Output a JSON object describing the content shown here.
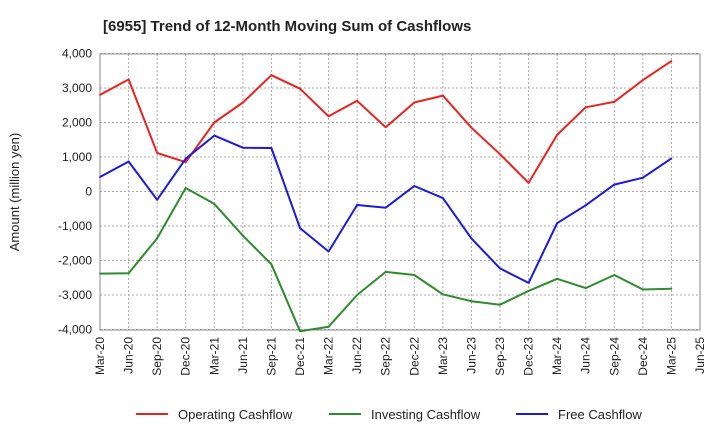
{
  "chart_data": {
    "type": "line",
    "title": "[6955]  Trend of 12-Month Moving Sum of Cashflows",
    "xlabel": "",
    "ylabel": "Amount (million yen)",
    "ylim": [
      -4000,
      4000
    ],
    "yticks": [
      -4000,
      -3000,
      -2000,
      -1000,
      0,
      1000,
      2000,
      3000,
      4000
    ],
    "ytick_labels": [
      "-4,000",
      "-3,000",
      "-2,000",
      "-1,000",
      "0",
      "1,000",
      "2,000",
      "3,000",
      "4,000"
    ],
    "categories": [
      "Mar-20",
      "Jun-20",
      "Sep-20",
      "Dec-20",
      "Mar-21",
      "Jun-21",
      "Sep-21",
      "Dec-21",
      "Mar-22",
      "Jun-22",
      "Sep-22",
      "Dec-22",
      "Mar-23",
      "Jun-23",
      "Sep-23",
      "Dec-23",
      "Mar-24",
      "Jun-24",
      "Sep-24",
      "Dec-24",
      "Mar-25",
      "Jun-25"
    ],
    "grid": true,
    "legend_position": "bottom",
    "series": [
      {
        "name": "Operating Cashflow",
        "color": "#e8221e",
        "values": [
          2800,
          3250,
          1120,
          850,
          2000,
          2580,
          3370,
          2980,
          2180,
          2630,
          1860,
          2580,
          2780,
          1850,
          1080,
          250,
          1640,
          2440,
          2600,
          3230,
          3780,
          null
        ]
      },
      {
        "name": "Investing Cashflow",
        "color": "#2e8b2e",
        "values": [
          -2380,
          -2370,
          -1360,
          100,
          -360,
          -1280,
          -2110,
          -4050,
          -3920,
          -3000,
          -2330,
          -2420,
          -2980,
          -3180,
          -3280,
          -2880,
          -2530,
          -2800,
          -2420,
          -2840,
          -2820,
          null
        ]
      },
      {
        "name": "Free Cashflow",
        "color": "#1a1adc",
        "values": [
          420,
          870,
          -240,
          950,
          1620,
          1270,
          1260,
          -1060,
          -1740,
          -390,
          -470,
          160,
          -190,
          -1360,
          -2230,
          -2650,
          -920,
          -400,
          200,
          400,
          960,
          null
        ]
      }
    ]
  }
}
